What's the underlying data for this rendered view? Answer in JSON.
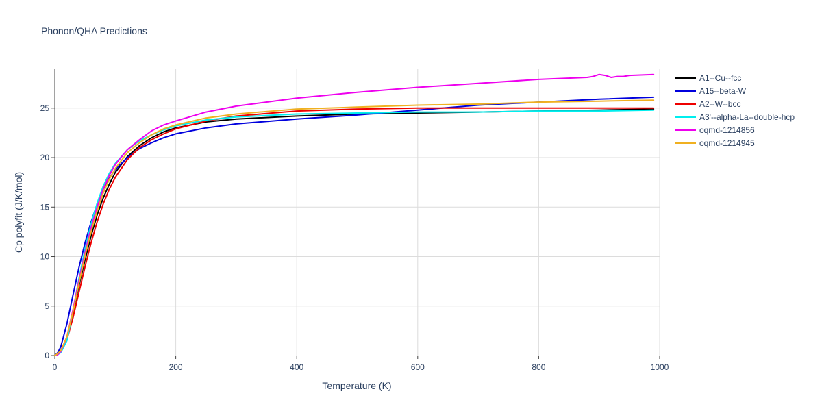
{
  "chart_data": {
    "type": "line",
    "title": "Phonon/QHA Predictions",
    "xlabel": "Temperature (K)",
    "ylabel": "Cp polyfit (J/K/mol)",
    "xlim": [
      0,
      1000
    ],
    "ylim": [
      0,
      29
    ],
    "xticks": [
      0,
      200,
      400,
      600,
      800,
      1000
    ],
    "yticks": [
      0,
      5,
      10,
      15,
      20,
      25
    ],
    "xtick_labels": [
      "0",
      "200",
      "400",
      "600",
      "800",
      "1000"
    ],
    "ytick_labels": [
      "0",
      "5",
      "10",
      "15",
      "20",
      "25"
    ],
    "grid": true,
    "legend_position": "top-right, outside plot",
    "series": [
      {
        "name": "A1--Cu--fcc",
        "color": "#000000",
        "x": [
          0,
          5,
          10,
          20,
          30,
          40,
          50,
          60,
          70,
          80,
          90,
          100,
          120,
          140,
          160,
          180,
          200,
          250,
          300,
          400,
          500,
          600,
          700,
          800,
          900,
          990
        ],
        "y": [
          0,
          0.2,
          0.5,
          1.8,
          4.3,
          7.1,
          9.7,
          12.1,
          14.2,
          15.9,
          17.3,
          18.5,
          20.1,
          21.2,
          22.0,
          22.6,
          23.0,
          23.6,
          23.9,
          24.2,
          24.4,
          24.5,
          24.6,
          24.7,
          24.8,
          24.9
        ]
      },
      {
        "name": "A15--beta-W",
        "color": "#0000dd",
        "x": [
          0,
          5,
          10,
          20,
          30,
          40,
          50,
          60,
          70,
          80,
          90,
          100,
          120,
          140,
          160,
          180,
          200,
          250,
          300,
          400,
          500,
          600,
          700,
          800,
          900,
          990
        ],
        "y": [
          0,
          0.3,
          0.9,
          3.2,
          6.1,
          8.9,
          11.4,
          13.5,
          15.3,
          16.8,
          17.9,
          18.8,
          20.0,
          20.9,
          21.5,
          22.0,
          22.4,
          23.0,
          23.4,
          23.9,
          24.3,
          24.8,
          25.3,
          25.6,
          25.9,
          26.1
        ]
      },
      {
        "name": "A2--W--bcc",
        "color": "#ee0000",
        "x": [
          0,
          5,
          10,
          20,
          30,
          40,
          50,
          60,
          70,
          80,
          90,
          100,
          120,
          140,
          160,
          180,
          200,
          250,
          300,
          400,
          500,
          600,
          700,
          800,
          900,
          990
        ],
        "y": [
          0,
          0.1,
          0.4,
          1.6,
          3.8,
          6.4,
          9.0,
          11.4,
          13.5,
          15.3,
          16.8,
          18.0,
          19.8,
          21.0,
          21.8,
          22.4,
          22.9,
          23.7,
          24.2,
          24.7,
          24.9,
          25.0,
          25.0,
          25.0,
          25.0,
          25.0
        ]
      },
      {
        "name": "A3'--alpha-La--double-hcp",
        "color": "#00eeee",
        "x": [
          0,
          5,
          10,
          20,
          30,
          40,
          50,
          60,
          70,
          80,
          90,
          100,
          120,
          140,
          160,
          180,
          200,
          250,
          300,
          400,
          500,
          600,
          700,
          800,
          900,
          990
        ],
        "y": [
          0,
          0.1,
          0.3,
          1.5,
          4.5,
          7.8,
          10.8,
          13.3,
          15.4,
          17.1,
          18.4,
          19.4,
          20.8,
          21.7,
          22.3,
          22.8,
          23.2,
          23.8,
          24.1,
          24.4,
          24.5,
          24.6,
          24.6,
          24.7,
          24.7,
          24.8
        ]
      },
      {
        "name": "oqmd-1214856",
        "color": "#ee00ee",
        "x": [
          0,
          5,
          10,
          20,
          30,
          40,
          50,
          60,
          70,
          80,
          90,
          100,
          120,
          140,
          160,
          180,
          200,
          250,
          300,
          400,
          500,
          600,
          700,
          800,
          880,
          890,
          900,
          910,
          920,
          930,
          940,
          950,
          990
        ],
        "y": [
          0,
          0.1,
          0.4,
          1.9,
          4.6,
          7.6,
          10.4,
          12.9,
          15.0,
          16.8,
          18.2,
          19.3,
          20.8,
          21.8,
          22.7,
          23.3,
          23.7,
          24.6,
          25.2,
          26.0,
          26.6,
          27.1,
          27.5,
          27.9,
          28.1,
          28.2,
          28.4,
          28.3,
          28.1,
          28.2,
          28.2,
          28.3,
          28.4
        ]
      },
      {
        "name": "oqmd-1214945",
        "color": "#f0b020",
        "x": [
          0,
          5,
          10,
          20,
          30,
          40,
          50,
          60,
          70,
          80,
          90,
          100,
          120,
          140,
          160,
          180,
          200,
          250,
          300,
          400,
          500,
          600,
          700,
          800,
          900,
          990
        ],
        "y": [
          0,
          0.2,
          0.5,
          1.9,
          4.4,
          7.3,
          10.1,
          12.5,
          14.6,
          16.4,
          17.8,
          18.9,
          20.5,
          21.5,
          22.3,
          22.9,
          23.3,
          24.0,
          24.4,
          24.9,
          25.1,
          25.3,
          25.4,
          25.6,
          25.7,
          25.8
        ]
      }
    ]
  }
}
